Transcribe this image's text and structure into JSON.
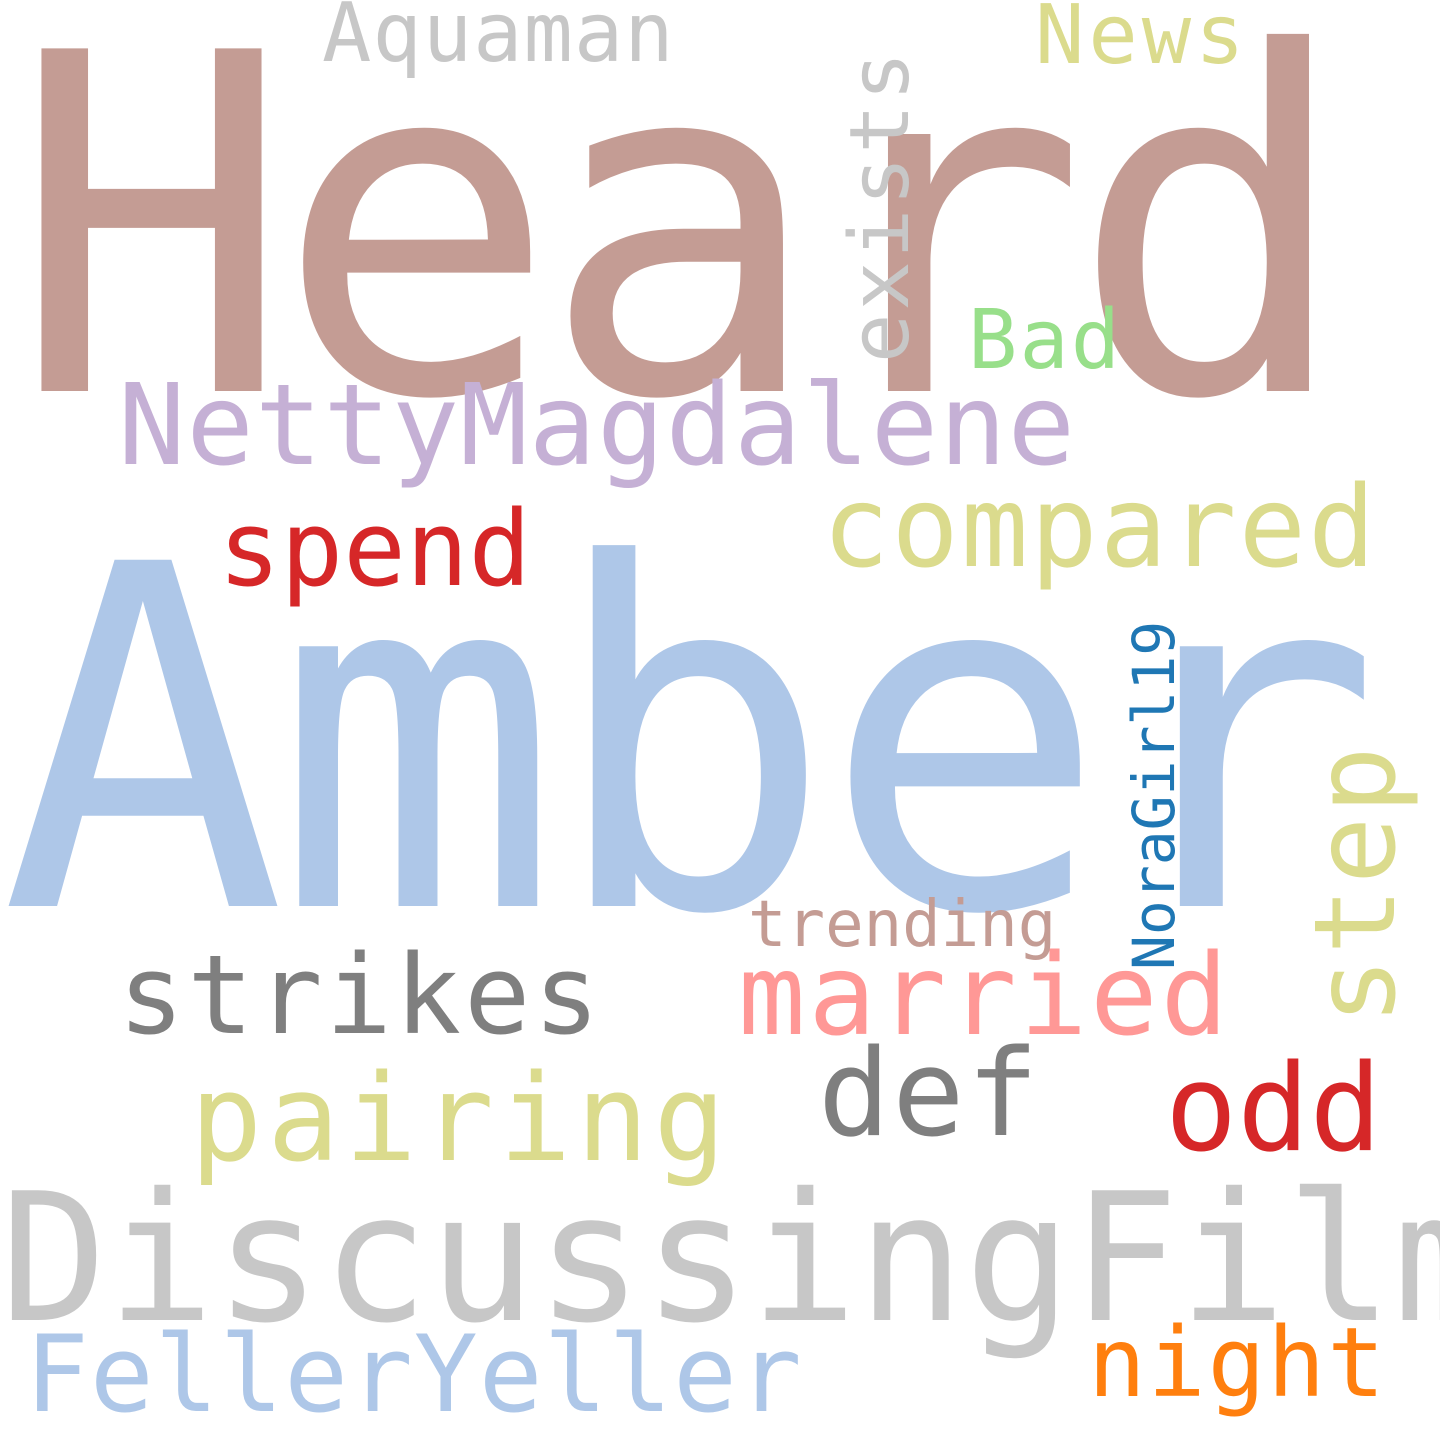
{
  "word_cloud": {
    "words": [
      {
        "text": "Heard",
        "color": "#c49c94",
        "orientation": "horizontal"
      },
      {
        "text": "Amber",
        "color": "#aec7e8",
        "orientation": "horizontal"
      },
      {
        "text": "DiscussingFilm",
        "color": "#c7c7c7",
        "orientation": "horizontal"
      },
      {
        "text": "NettyMagdalene",
        "color": "#c5b0d5",
        "orientation": "horizontal"
      },
      {
        "text": "FellerYeller",
        "color": "#aec7e8",
        "orientation": "horizontal"
      },
      {
        "text": "compared",
        "color": "#dbdb8d",
        "orientation": "horizontal"
      },
      {
        "text": "married",
        "color": "#ff9896",
        "orientation": "horizontal"
      },
      {
        "text": "strikes",
        "color": "#7f7f7f",
        "orientation": "horizontal"
      },
      {
        "text": "pairing",
        "color": "#dbdb8d",
        "orientation": "horizontal"
      },
      {
        "text": "odd",
        "color": "#d62728",
        "orientation": "horizontal"
      },
      {
        "text": "def",
        "color": "#7f7f7f",
        "orientation": "horizontal"
      },
      {
        "text": "step",
        "color": "#dbdb8d",
        "orientation": "vertical"
      },
      {
        "text": "spend",
        "color": "#d62728",
        "orientation": "horizontal"
      },
      {
        "text": "night",
        "color": "#ff7f0e",
        "orientation": "horizontal"
      },
      {
        "text": "exists",
        "color": "#c7c7c7",
        "orientation": "vertical"
      },
      {
        "text": "Aquaman",
        "color": "#c7c7c7",
        "orientation": "horizontal"
      },
      {
        "text": "News",
        "color": "#dbdb8d",
        "orientation": "horizontal"
      },
      {
        "text": "Bad",
        "color": "#98df8a",
        "orientation": "horizontal"
      },
      {
        "text": "trending",
        "color": "#c49c94",
        "orientation": "horizontal"
      },
      {
        "text": "NoraGirl19",
        "color": "#1f77b4",
        "orientation": "vertical"
      }
    ]
  }
}
